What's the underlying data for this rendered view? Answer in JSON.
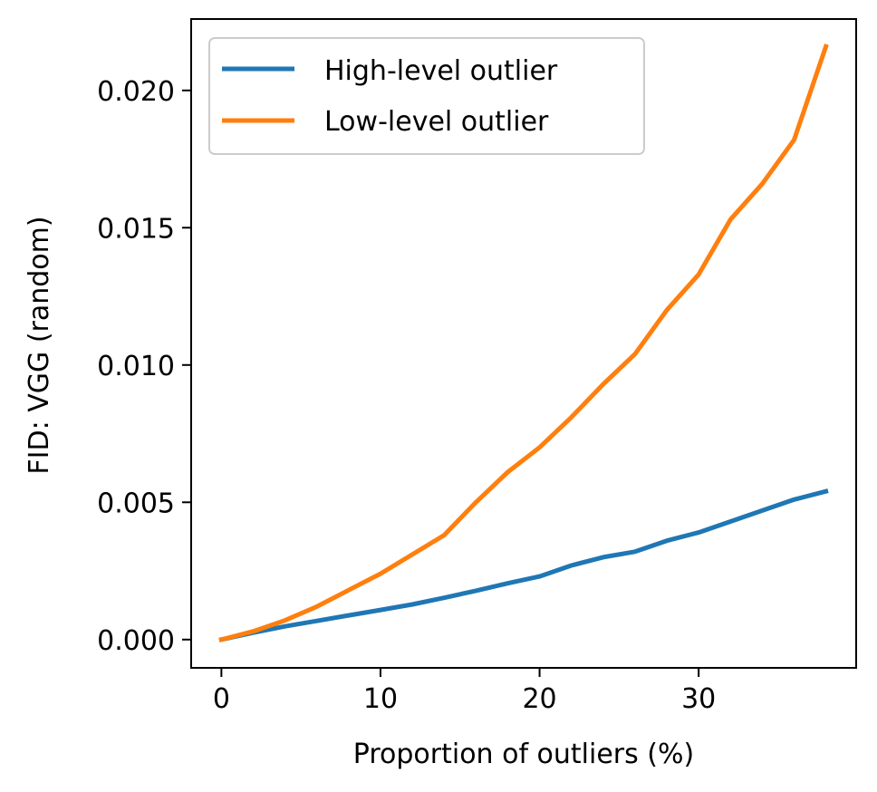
{
  "chart_data": {
    "type": "line",
    "title": "",
    "xlabel": "Proportion of outliers (%)",
    "ylabel": "FID: VGG (random)",
    "xlim": [
      -1.9,
      39.9
    ],
    "ylim": [
      -0.00103,
      0.0226
    ],
    "xticks": [
      0,
      10,
      20,
      30
    ],
    "xtick_labels": [
      "0",
      "10",
      "20",
      "30"
    ],
    "yticks": [
      0.0,
      0.005,
      0.01,
      0.015,
      0.02
    ],
    "ytick_labels": [
      "0.000",
      "0.005",
      "0.010",
      "0.015",
      "0.020"
    ],
    "grid": false,
    "legend_position": "top-left",
    "series": [
      {
        "name": "High-level outlier",
        "color": "#1f77b4",
        "x": [
          0,
          2,
          4,
          6,
          8,
          10,
          12,
          14,
          16,
          18,
          20,
          22,
          24,
          26,
          28,
          30,
          32,
          34,
          36,
          38
        ],
        "y": [
          0.0,
          0.00025,
          0.00048,
          0.00068,
          0.00088,
          0.00108,
          0.00128,
          0.00152,
          0.00178,
          0.00205,
          0.0023,
          0.0027,
          0.003,
          0.0032,
          0.0036,
          0.0039,
          0.0043,
          0.0047,
          0.0051,
          0.0054
        ]
      },
      {
        "name": "Low-level outlier",
        "color": "#ff7f0e",
        "x": [
          0,
          2,
          4,
          6,
          8,
          10,
          12,
          14,
          16,
          18,
          20,
          22,
          24,
          26,
          28,
          30,
          32,
          34,
          36,
          38
        ],
        "y": [
          0.0,
          0.0003,
          0.0007,
          0.0012,
          0.0018,
          0.0024,
          0.0031,
          0.0038,
          0.005,
          0.0061,
          0.007,
          0.0081,
          0.0093,
          0.0104,
          0.012,
          0.0133,
          0.0153,
          0.0166,
          0.0182,
          0.0216
        ]
      }
    ]
  }
}
